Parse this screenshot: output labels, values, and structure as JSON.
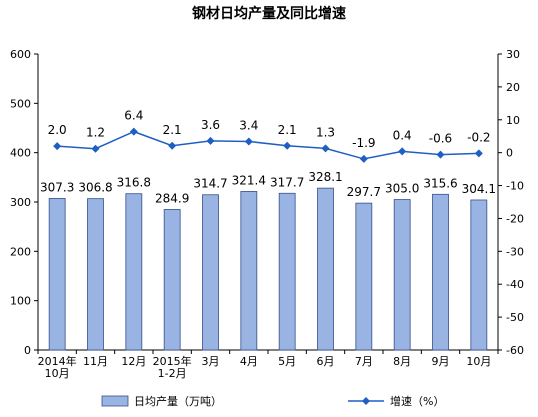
{
  "chart_data": {
    "type": "bar+line",
    "title": "钢材日均产量及同比增速",
    "categories": [
      "2014年\n10月",
      "11月",
      "12月",
      "2015年\n1-2月",
      "3月",
      "4月",
      "5月",
      "6月",
      "7月",
      "8月",
      "9月",
      "10月"
    ],
    "series": [
      {
        "name": "日均产量（万吨）",
        "type": "bar",
        "axis": "left",
        "values": [
          307.3,
          306.8,
          316.8,
          284.9,
          314.7,
          321.4,
          317.7,
          328.1,
          297.7,
          305.0,
          315.6,
          304.1
        ],
        "labels": [
          "307.3",
          "306.8",
          "316.8",
          "284.9",
          "314.7",
          "321.4",
          "317.7",
          "328.1",
          "297.7",
          "305.0",
          "315.6",
          "304.1"
        ]
      },
      {
        "name": "增速（%）",
        "type": "line",
        "axis": "right",
        "values": [
          2.0,
          1.2,
          6.4,
          2.1,
          3.6,
          3.4,
          2.1,
          1.3,
          -1.9,
          0.4,
          -0.6,
          -0.2
        ],
        "labels": [
          "2.0",
          "1.2",
          "6.4",
          "2.1",
          "3.6",
          "3.4",
          "2.1",
          "1.3",
          "-1.9",
          "0.4",
          "-0.6",
          "-0.2"
        ]
      }
    ],
    "yleft": {
      "min": 0,
      "max": 600,
      "step": 100
    },
    "yright": {
      "min": -60,
      "max": 30,
      "step": 10
    },
    "grid": false,
    "legend_position": "bottom",
    "colors": {
      "bar_fill": "#99b3e3",
      "bar_stroke": "#3a4f8c",
      "line": "#1f5fc2",
      "axis": "#000000"
    }
  }
}
